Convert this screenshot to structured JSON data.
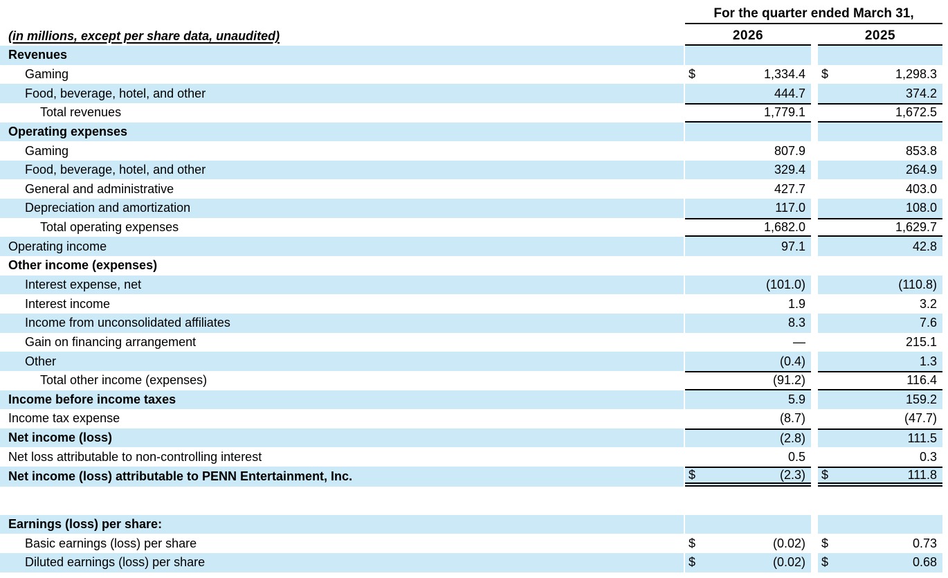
{
  "document": {
    "units_note": "(in millions, except per share data, unaudited)",
    "period_header": "For the quarter ended March 31,",
    "columns": [
      "2026",
      "2025"
    ],
    "dollar_sign": "$",
    "shade_color": "#cce9f8"
  },
  "income_statement": {
    "rows": [
      {
        "label": "Revenues",
        "indent": 0,
        "bold": true,
        "shade": true,
        "v2026": "",
        "v2025": ""
      },
      {
        "label": "Gaming",
        "indent": 1,
        "dollar": true,
        "v2026": "1,334.4",
        "v2025": "1,298.3"
      },
      {
        "label": "Food, beverage, hotel, and other",
        "indent": 1,
        "shade": true,
        "v2026": "444.7",
        "v2025": "374.2"
      },
      {
        "label": "Total revenues",
        "indent": 2,
        "bt": true,
        "bb": true,
        "v2026": "1,779.1",
        "v2025": "1,672.5"
      },
      {
        "label": "Operating expenses",
        "indent": 0,
        "bold": true,
        "shade": true,
        "v2026": "",
        "v2025": ""
      },
      {
        "label": "Gaming",
        "indent": 1,
        "v2026": "807.9",
        "v2025": "853.8"
      },
      {
        "label": "Food, beverage, hotel, and other",
        "indent": 1,
        "shade": true,
        "v2026": "329.4",
        "v2025": "264.9"
      },
      {
        "label": "General and administrative",
        "indent": 1,
        "v2026": "427.7",
        "v2025": "403.0"
      },
      {
        "label": "Depreciation and amortization",
        "indent": 1,
        "shade": true,
        "v2026": "117.0",
        "v2025": "108.0"
      },
      {
        "label": "Total operating expenses",
        "indent": 2,
        "bt": true,
        "bb": true,
        "v2026": "1,682.0",
        "v2025": "1,629.7"
      },
      {
        "label": "Operating income",
        "indent": 0,
        "shade": true,
        "v2026": "97.1",
        "v2025": "42.8"
      },
      {
        "label": "Other income (expenses)",
        "indent": 0,
        "bold": true,
        "v2026": "",
        "v2025": ""
      },
      {
        "label": "Interest expense, net",
        "indent": 1,
        "shade": true,
        "v2026": "(101.0)",
        "v2025": "(110.8)"
      },
      {
        "label": "Interest income",
        "indent": 1,
        "v2026": "1.9",
        "v2025": "3.2"
      },
      {
        "label": "Income from unconsolidated affiliates",
        "indent": 1,
        "shade": true,
        "v2026": "8.3",
        "v2025": "7.6"
      },
      {
        "label": "Gain on financing arrangement",
        "indent": 1,
        "v2026": "—",
        "v2025": "215.1"
      },
      {
        "label": "Other",
        "indent": 1,
        "shade": true,
        "v2026": "(0.4)",
        "v2025": "1.3"
      },
      {
        "label": "Total other income (expenses)",
        "indent": 2,
        "bt": true,
        "bb": true,
        "v2026": "(91.2)",
        "v2025": "116.4"
      },
      {
        "label": "Income before income taxes",
        "indent": 0,
        "bold": true,
        "shade": true,
        "v2026": "5.9",
        "v2025": "159.2"
      },
      {
        "label": "Income tax expense",
        "indent": 0,
        "v2026": "(8.7)",
        "v2025": "(47.7)"
      },
      {
        "label": "Net income (loss)",
        "indent": 0,
        "bold": true,
        "shade": true,
        "bt": true,
        "v2026": "(2.8)",
        "v2025": "111.5"
      },
      {
        "label": "Net loss attributable to non-controlling interest",
        "indent": 0,
        "v2026": "0.5",
        "v2025": "0.3"
      },
      {
        "label": "Net income (loss) attributable to PENN Entertainment, Inc.",
        "indent": 0,
        "bold": true,
        "shade": true,
        "dollar": true,
        "bt": true,
        "dbb": true,
        "v2026": "(2.3)",
        "v2025": "111.8"
      }
    ],
    "eps_rows": [
      {
        "label": "Earnings (loss) per share:",
        "indent": 0,
        "bold": true,
        "shade": true,
        "v2026": "",
        "v2025": ""
      },
      {
        "label": "Basic earnings (loss) per share",
        "indent": 1,
        "dollar": true,
        "v2026": "(0.02)",
        "v2025": "0.73"
      },
      {
        "label": "Diluted earnings (loss) per share",
        "indent": 1,
        "shade": true,
        "dollar": true,
        "v2026": "(0.02)",
        "v2025": "0.68"
      }
    ]
  }
}
